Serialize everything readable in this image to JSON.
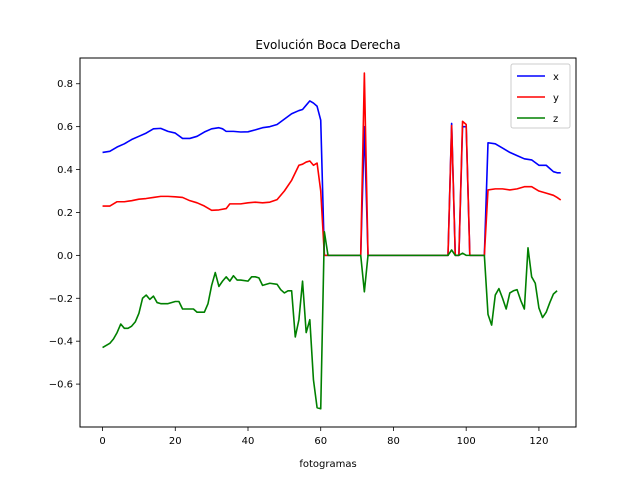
{
  "chart_data": {
    "type": "line",
    "title": "Evolución Boca Derecha",
    "xlabel": "fotogramas",
    "ylabel": "",
    "xlim": [
      -6.2,
      130.2
    ],
    "ylim": [
      -0.8,
      0.92
    ],
    "xticks": [
      0,
      20,
      40,
      60,
      80,
      100,
      120
    ],
    "yticks": [
      -0.6,
      -0.4,
      -0.2,
      0.0,
      0.2,
      0.4,
      0.6,
      0.8
    ],
    "ytick_labels": [
      "−0.6",
      "−0.4",
      "−0.2",
      "0.0",
      "0.2",
      "0.4",
      "0.6",
      "0.8"
    ],
    "grid": false,
    "legend_position": "upper right",
    "series": [
      {
        "name": "x",
        "color": "#0000ff",
        "points": [
          [
            0,
            0.48
          ],
          [
            2,
            0.485
          ],
          [
            4,
            0.505
          ],
          [
            6,
            0.52
          ],
          [
            8,
            0.54
          ],
          [
            10,
            0.555
          ],
          [
            12,
            0.57
          ],
          [
            14,
            0.59
          ],
          [
            16,
            0.592
          ],
          [
            18,
            0.578
          ],
          [
            20,
            0.57
          ],
          [
            22,
            0.545
          ],
          [
            24,
            0.545
          ],
          [
            26,
            0.555
          ],
          [
            28,
            0.575
          ],
          [
            30,
            0.59
          ],
          [
            32,
            0.595
          ],
          [
            33,
            0.59
          ],
          [
            34,
            0.578
          ],
          [
            36,
            0.578
          ],
          [
            38,
            0.575
          ],
          [
            40,
            0.576
          ],
          [
            42,
            0.585
          ],
          [
            44,
            0.595
          ],
          [
            46,
            0.6
          ],
          [
            48,
            0.61
          ],
          [
            50,
            0.635
          ],
          [
            52,
            0.66
          ],
          [
            54,
            0.675
          ],
          [
            55,
            0.68
          ],
          [
            56,
            0.7
          ],
          [
            57,
            0.72
          ],
          [
            58,
            0.71
          ],
          [
            59,
            0.695
          ],
          [
            60,
            0.63
          ],
          [
            61,
            0.0
          ],
          [
            71,
            0.0
          ],
          [
            72,
            0.6
          ],
          [
            73,
            0.0
          ],
          [
            95,
            0.0
          ],
          [
            96,
            0.615
          ],
          [
            97,
            0.0
          ],
          [
            98,
            0.0
          ],
          [
            99,
            0.6
          ],
          [
            100,
            0.6
          ],
          [
            101,
            0.0
          ],
          [
            105,
            0.0
          ],
          [
            106,
            0.525
          ],
          [
            108,
            0.52
          ],
          [
            110,
            0.5
          ],
          [
            112,
            0.48
          ],
          [
            114,
            0.465
          ],
          [
            116,
            0.45
          ],
          [
            118,
            0.445
          ],
          [
            120,
            0.42
          ],
          [
            122,
            0.42
          ],
          [
            123,
            0.405
          ],
          [
            124,
            0.39
          ],
          [
            125,
            0.385
          ],
          [
            126,
            0.385
          ]
        ]
      },
      {
        "name": "y",
        "color": "#ff0000",
        "points": [
          [
            0,
            0.23
          ],
          [
            2,
            0.23
          ],
          [
            4,
            0.25
          ],
          [
            6,
            0.25
          ],
          [
            8,
            0.255
          ],
          [
            10,
            0.262
          ],
          [
            12,
            0.265
          ],
          [
            14,
            0.27
          ],
          [
            16,
            0.275
          ],
          [
            18,
            0.275
          ],
          [
            20,
            0.273
          ],
          [
            22,
            0.27
          ],
          [
            24,
            0.255
          ],
          [
            26,
            0.245
          ],
          [
            28,
            0.23
          ],
          [
            30,
            0.21
          ],
          [
            32,
            0.212
          ],
          [
            34,
            0.218
          ],
          [
            35,
            0.24
          ],
          [
            36,
            0.24
          ],
          [
            38,
            0.24
          ],
          [
            40,
            0.245
          ],
          [
            42,
            0.248
          ],
          [
            44,
            0.245
          ],
          [
            46,
            0.248
          ],
          [
            48,
            0.26
          ],
          [
            50,
            0.3
          ],
          [
            52,
            0.35
          ],
          [
            54,
            0.42
          ],
          [
            55,
            0.425
          ],
          [
            56,
            0.435
          ],
          [
            57,
            0.44
          ],
          [
            58,
            0.42
          ],
          [
            59,
            0.43
          ],
          [
            60,
            0.3
          ],
          [
            61,
            0.0
          ],
          [
            71,
            0.0
          ],
          [
            72,
            0.85
          ],
          [
            73,
            0.0
          ],
          [
            95,
            0.0
          ],
          [
            96,
            0.605
          ],
          [
            97,
            0.0
          ],
          [
            98,
            0.0
          ],
          [
            99,
            0.625
          ],
          [
            100,
            0.61
          ],
          [
            101,
            0.0
          ],
          [
            105,
            0.0
          ],
          [
            106,
            0.305
          ],
          [
            108,
            0.31
          ],
          [
            110,
            0.31
          ],
          [
            112,
            0.305
          ],
          [
            114,
            0.31
          ],
          [
            116,
            0.32
          ],
          [
            118,
            0.32
          ],
          [
            120,
            0.3
          ],
          [
            122,
            0.29
          ],
          [
            124,
            0.28
          ],
          [
            125,
            0.27
          ],
          [
            126,
            0.258
          ]
        ]
      },
      {
        "name": "z",
        "color": "#008000",
        "points": [
          [
            0,
            -0.43
          ],
          [
            2,
            -0.41
          ],
          [
            3,
            -0.39
          ],
          [
            4,
            -0.36
          ],
          [
            5,
            -0.32
          ],
          [
            6,
            -0.34
          ],
          [
            7,
            -0.34
          ],
          [
            8,
            -0.33
          ],
          [
            9,
            -0.31
          ],
          [
            10,
            -0.27
          ],
          [
            11,
            -0.2
          ],
          [
            12,
            -0.185
          ],
          [
            13,
            -0.205
          ],
          [
            14,
            -0.19
          ],
          [
            15,
            -0.22
          ],
          [
            16,
            -0.225
          ],
          [
            18,
            -0.225
          ],
          [
            20,
            -0.215
          ],
          [
            21,
            -0.215
          ],
          [
            22,
            -0.25
          ],
          [
            24,
            -0.25
          ],
          [
            25,
            -0.25
          ],
          [
            26,
            -0.265
          ],
          [
            28,
            -0.265
          ],
          [
            29,
            -0.225
          ],
          [
            30,
            -0.14
          ],
          [
            31,
            -0.08
          ],
          [
            32,
            -0.145
          ],
          [
            33,
            -0.12
          ],
          [
            34,
            -0.1
          ],
          [
            35,
            -0.12
          ],
          [
            36,
            -0.095
          ],
          [
            37,
            -0.115
          ],
          [
            38,
            -0.115
          ],
          [
            40,
            -0.12
          ],
          [
            41,
            -0.1
          ],
          [
            42,
            -0.1
          ],
          [
            43,
            -0.105
          ],
          [
            44,
            -0.14
          ],
          [
            46,
            -0.13
          ],
          [
            48,
            -0.135
          ],
          [
            49,
            -0.16
          ],
          [
            50,
            -0.175
          ],
          [
            51,
            -0.165
          ],
          [
            52,
            -0.165
          ],
          [
            53,
            -0.38
          ],
          [
            54,
            -0.3
          ],
          [
            55,
            -0.12
          ],
          [
            56,
            -0.36
          ],
          [
            57,
            -0.3
          ],
          [
            58,
            -0.58
          ],
          [
            59,
            -0.71
          ],
          [
            60,
            -0.715
          ],
          [
            61,
            0.11
          ],
          [
            62,
            0.0
          ],
          [
            71,
            0.0
          ],
          [
            72,
            -0.17
          ],
          [
            73,
            0.0
          ],
          [
            95,
            0.0
          ],
          [
            96,
            0.025
          ],
          [
            97,
            0.0
          ],
          [
            98,
            0.0
          ],
          [
            99,
            0.01
          ],
          [
            100,
            0.0
          ],
          [
            101,
            0.0
          ],
          [
            105,
            0.0
          ],
          [
            106,
            -0.275
          ],
          [
            107,
            -0.325
          ],
          [
            108,
            -0.185
          ],
          [
            109,
            -0.155
          ],
          [
            110,
            -0.2
          ],
          [
            111,
            -0.25
          ],
          [
            112,
            -0.175
          ],
          [
            113,
            -0.165
          ],
          [
            114,
            -0.16
          ],
          [
            115,
            -0.21
          ],
          [
            116,
            -0.25
          ],
          [
            117,
            0.035
          ],
          [
            118,
            -0.1
          ],
          [
            119,
            -0.13
          ],
          [
            120,
            -0.245
          ],
          [
            121,
            -0.29
          ],
          [
            122,
            -0.265
          ],
          [
            123,
            -0.22
          ],
          [
            124,
            -0.18
          ],
          [
            125,
            -0.165
          ]
        ]
      }
    ]
  }
}
